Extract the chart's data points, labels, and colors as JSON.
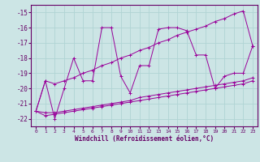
{
  "xlabel": "Windchill (Refroidissement éolien,°C)",
  "x": [
    0,
    1,
    2,
    3,
    4,
    5,
    6,
    7,
    8,
    9,
    10,
    11,
    12,
    13,
    14,
    15,
    16,
    17,
    18,
    19,
    20,
    21,
    22,
    23
  ],
  "y_main": [
    -21.5,
    -19.5,
    -22.0,
    -20.0,
    -18.0,
    -19.5,
    -19.5,
    -16.0,
    -16.0,
    -19.2,
    -20.3,
    -18.5,
    -18.5,
    -16.1,
    -16.0,
    -16.0,
    -16.2,
    -17.8,
    -17.8,
    -20.0,
    -19.2,
    -19.0,
    -19.0,
    -17.2
  ],
  "y_upper": [
    -21.5,
    -19.5,
    -19.7,
    -19.5,
    -19.3,
    -19.0,
    -18.8,
    -18.5,
    -18.3,
    -18.0,
    -17.8,
    -17.5,
    -17.3,
    -17.0,
    -16.8,
    -16.5,
    -16.3,
    -16.1,
    -15.9,
    -15.6,
    -15.4,
    -15.1,
    -14.9,
    -17.2
  ],
  "y_lower1": [
    -21.5,
    -21.6,
    -21.6,
    -21.5,
    -21.4,
    -21.3,
    -21.2,
    -21.1,
    -21.0,
    -20.9,
    -20.8,
    -20.6,
    -20.5,
    -20.4,
    -20.3,
    -20.2,
    -20.1,
    -20.0,
    -19.9,
    -19.8,
    -19.7,
    -19.6,
    -19.5,
    -19.3
  ],
  "y_lower2": [
    -21.5,
    -21.8,
    -21.7,
    -21.6,
    -21.5,
    -21.4,
    -21.3,
    -21.2,
    -21.1,
    -21.0,
    -20.9,
    -20.8,
    -20.7,
    -20.6,
    -20.5,
    -20.4,
    -20.3,
    -20.2,
    -20.1,
    -20.0,
    -19.9,
    -19.8,
    -19.7,
    -19.5
  ],
  "color": "#990099",
  "bg_color": "#cce5e5",
  "grid_color": "#aacccc",
  "ylim": [
    -22.5,
    -14.5
  ],
  "xlim": [
    -0.5,
    23.5
  ],
  "yticks": [
    -22,
    -21,
    -20,
    -19,
    -18,
    -17,
    -16,
    -15
  ],
  "xticks": [
    0,
    1,
    2,
    3,
    4,
    5,
    6,
    7,
    8,
    9,
    10,
    11,
    12,
    13,
    14,
    15,
    16,
    17,
    18,
    19,
    20,
    21,
    22,
    23
  ],
  "tick_color": "#660066",
  "label_color": "#660066",
  "spine_color": "#660066"
}
